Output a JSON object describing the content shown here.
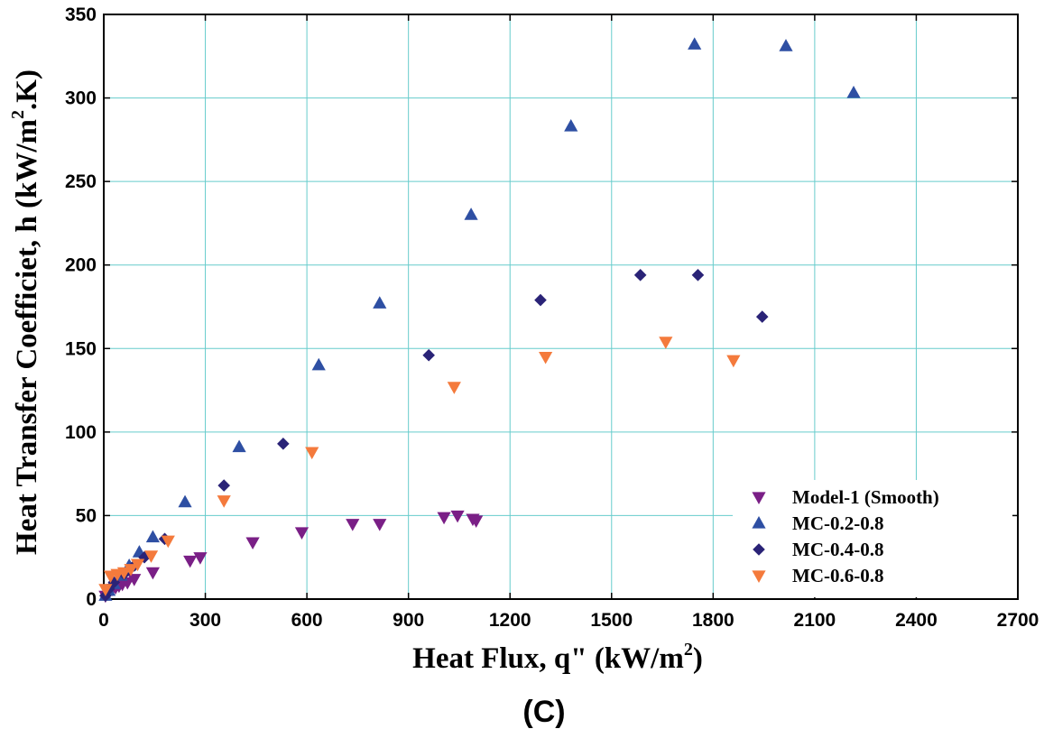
{
  "chart_data": {
    "type": "scatter",
    "title": "",
    "caption": "(C)",
    "xlabel": {
      "main": "Heat Flux, q\" (kW/m",
      "sup": "2",
      "tail": ")"
    },
    "ylabel": {
      "main": "Heat Transfer Coefficiet, h (kW/m",
      "sup": "2",
      "tail": ".K)"
    },
    "xlim": [
      0,
      2700
    ],
    "ylim": [
      0,
      350
    ],
    "xticks": [
      0,
      300,
      600,
      900,
      1200,
      1500,
      1800,
      2100,
      2400,
      2700
    ],
    "yticks": [
      0,
      50,
      100,
      150,
      200,
      250,
      300,
      350
    ],
    "grid": true,
    "grid_color": "#66cccc",
    "legend_position": "bottom-right",
    "series": [
      {
        "name": "Model-1 (Smooth)",
        "marker": "triangle-down",
        "color": "#7a1f86",
        "x": [
          5,
          15,
          25,
          35,
          45,
          55,
          70,
          90,
          145,
          255,
          285,
          440,
          585,
          735,
          815,
          1005,
          1045,
          1090,
          1100
        ],
        "y": [
          2,
          4,
          6,
          7,
          8,
          9,
          10,
          12,
          16,
          23,
          25,
          34,
          40,
          45,
          45,
          49,
          50,
          48,
          47
        ]
      },
      {
        "name": "MC-0.2-0.8",
        "marker": "triangle-up",
        "color": "#2e4fa3",
        "x": [
          5,
          15,
          30,
          50,
          75,
          105,
          145,
          240,
          400,
          635,
          815,
          1085,
          1380,
          1745,
          2015,
          2215
        ],
        "y": [
          2,
          5,
          9,
          14,
          20,
          28,
          37,
          58,
          91,
          140,
          177,
          230,
          283,
          332,
          331,
          303
        ]
      },
      {
        "name": "MC-0.4-0.8",
        "marker": "diamond",
        "color": "#2a2377",
        "x": [
          5,
          15,
          30,
          60,
          90,
          120,
          180,
          355,
          530,
          960,
          1290,
          1585,
          1755,
          1945
        ],
        "y": [
          2,
          6,
          10,
          15,
          20,
          25,
          36,
          68,
          93,
          146,
          179,
          194,
          194,
          169
        ]
      },
      {
        "name": "MC-0.6-0.8",
        "marker": "triangle-down",
        "color": "#f47a3c",
        "x": [
          5,
          20,
          40,
          60,
          80,
          100,
          140,
          190,
          355,
          615,
          1035,
          1305,
          1660,
          1860
        ],
        "y": [
          6,
          14,
          15,
          16,
          18,
          21,
          26,
          35,
          59,
          88,
          127,
          145,
          154,
          143
        ]
      }
    ]
  }
}
